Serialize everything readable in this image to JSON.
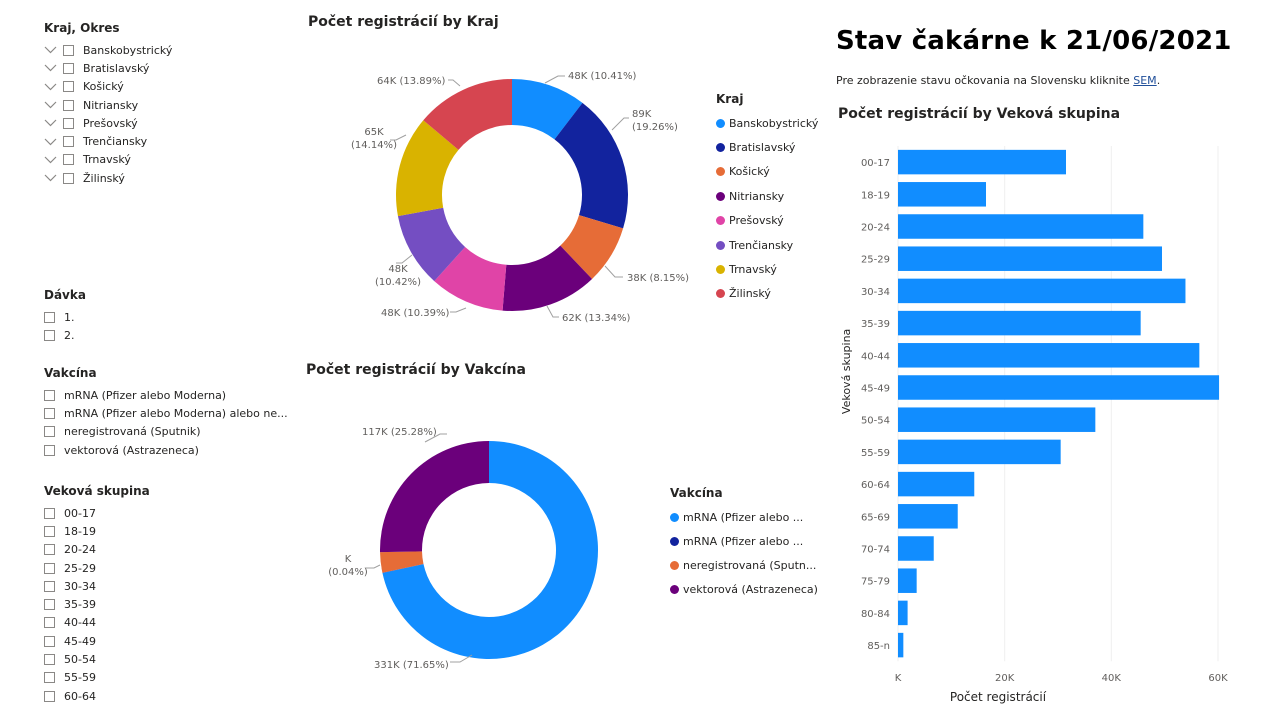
{
  "slicers": {
    "kraj": {
      "title": "Kraj, Okres",
      "items": [
        "Banskobystrický",
        "Bratislavský",
        "Košický",
        "Nitriansky",
        "Prešovský",
        "Trenčiansky",
        "Trnavský",
        "Žilinský"
      ]
    },
    "davka": {
      "title": "Dávka",
      "items": [
        "1.",
        "2."
      ]
    },
    "vakcina": {
      "title": "Vakcína",
      "items": [
        "mRNA (Pfizer alebo Moderna)",
        "mRNA (Pfizer alebo Moderna) alebo ne...",
        "neregistrovaná (Sputnik)",
        "vektorová (Astrazeneca)"
      ]
    },
    "vekova": {
      "title": "Veková skupina",
      "items": [
        "00-17",
        "18-19",
        "20-24",
        "25-29",
        "30-34",
        "35-39",
        "40-44",
        "45-49",
        "50-54",
        "55-59",
        "60-64"
      ]
    }
  },
  "header": {
    "title": "Stav čakárne k 21/06/2021",
    "info_text": "Pre zobrazenie stavu očkovania na Slovensku kliknite ",
    "info_link": "SEM",
    "info_end": "."
  },
  "colors": {
    "blue": "#118DFF",
    "dark_blue": "#12239E",
    "orange": "#E66C37",
    "purple": "#6B007B",
    "pink": "#E044A7",
    "violet": "#744EC2",
    "gold": "#D9B300",
    "red": "#D64550"
  },
  "chart_data": [
    {
      "type": "pie",
      "title": "Počet registrácií by Kraj",
      "legend_title": "Kraj",
      "legend_position": "right",
      "categories": [
        "Banskobystrický",
        "Bratislavský",
        "Košický",
        "Nitriansky",
        "Prešovský",
        "Trenčiansky",
        "Trnavský",
        "Žilinský"
      ],
      "values": [
        48,
        89,
        38,
        62,
        48,
        48,
        65,
        64
      ],
      "percents": [
        10.41,
        19.26,
        8.15,
        13.34,
        10.39,
        10.42,
        14.14,
        13.89
      ],
      "labels": [
        "48K (10.41%)",
        "89K (19.26%)",
        "38K (8.15%)",
        "62K (13.34%)",
        "48K (10.39%)",
        "48K (10.42%)",
        "65K (14.14%)",
        "64K (13.89%)"
      ],
      "colors": [
        "#118DFF",
        "#12239E",
        "#E66C37",
        "#6B007B",
        "#E044A7",
        "#744EC2",
        "#D9B300",
        "#D64550"
      ]
    },
    {
      "type": "pie",
      "title": "Počet registrácií by Vakcína",
      "legend_title": "Vakcína",
      "legend_position": "right",
      "categories": [
        "mRNA (Pfizer alebo ...",
        "mRNA (Pfizer alebo ...",
        "neregistrovaná (Sputn...",
        "vektorová (Astrazeneca)"
      ],
      "values": [
        331,
        0.2,
        14,
        117
      ],
      "percents": [
        71.65,
        0.04,
        3.03,
        25.28
      ],
      "labels": [
        "331K (71.65%)",
        "K (0.04%)",
        "",
        "117K (25.28%)"
      ],
      "colors": [
        "#118DFF",
        "#12239E",
        "#E66C37",
        "#6B007B"
      ]
    },
    {
      "type": "bar",
      "orientation": "horizontal",
      "title": "Počet registrácií by Veková skupina",
      "xlabel": "Počet registrácií",
      "ylabel": "Veková skupina",
      "categories": [
        "00-17",
        "18-19",
        "20-24",
        "25-29",
        "30-34",
        "35-39",
        "40-44",
        "45-49",
        "50-54",
        "55-59",
        "60-64",
        "65-69",
        "70-74",
        "75-79",
        "80-84",
        "85-n"
      ],
      "values": [
        31500,
        16500,
        46000,
        49500,
        53900,
        45500,
        56500,
        60200,
        37000,
        30500,
        14300,
        11200,
        6700,
        3500,
        1800,
        1000
      ],
      "xlim": [
        0,
        60000
      ],
      "xticks": [
        "K",
        "20K",
        "40K",
        "60K"
      ],
      "grid": true,
      "color": "#118DFF"
    }
  ]
}
